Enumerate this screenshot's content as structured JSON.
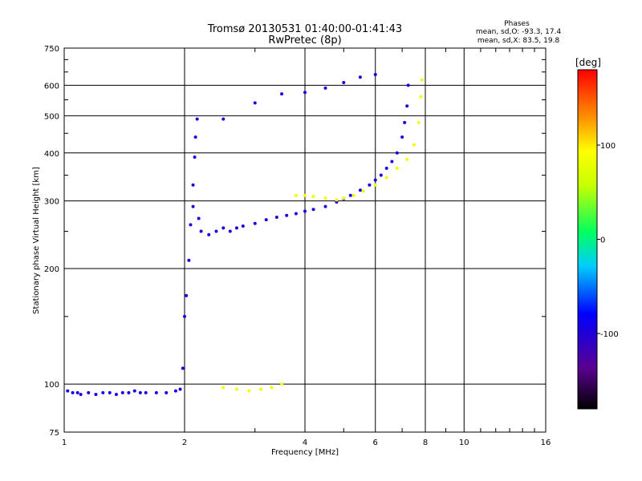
{
  "chart_data": {
    "type": "scatter",
    "title": "Tromsø 20130531 01:40:00-01:41:43",
    "subtitle": "RwPretec (8p)",
    "xlabel": "Frequency [MHz]",
    "ylabel": "Stationary phase Virtual Height [km]",
    "xscale": "log",
    "yscale": "log",
    "xlim": [
      1,
      16
    ],
    "ylim": [
      75,
      750
    ],
    "x_ticks": [
      1,
      2,
      4,
      6,
      8,
      10,
      16
    ],
    "y_ticks": [
      75,
      100,
      200,
      300,
      400,
      500,
      600,
      750
    ],
    "grid": true,
    "stats": {
      "heading": "Phases",
      "o_line": "mean, sd,O: -93.3, 17.4",
      "x_line": "mean, sd,X:  83.5, 19.8"
    },
    "colorbar": {
      "label": "[deg]",
      "range": [
        -180,
        180
      ],
      "ticks": [
        100,
        0,
        -100
      ],
      "colormap": "rainbow (black-purple-blue-cyan-green-yellow-orange-red)"
    },
    "series": [
      {
        "mode": "O",
        "phase": -95,
        "points": [
          [
            1.02,
            96
          ],
          [
            1.05,
            95
          ],
          [
            1.08,
            95
          ],
          [
            1.1,
            94
          ],
          [
            1.15,
            95
          ],
          [
            1.2,
            94
          ],
          [
            1.25,
            95
          ],
          [
            1.3,
            95
          ],
          [
            1.35,
            94
          ],
          [
            1.4,
            95
          ],
          [
            1.45,
            95
          ],
          [
            1.5,
            96
          ],
          [
            1.55,
            95
          ],
          [
            1.6,
            95
          ],
          [
            1.7,
            95
          ],
          [
            1.8,
            95
          ],
          [
            1.9,
            96
          ],
          [
            1.95,
            97
          ],
          [
            1.98,
            110
          ],
          [
            2.0,
            150
          ],
          [
            2.02,
            170
          ],
          [
            2.05,
            210
          ],
          [
            2.07,
            260
          ],
          [
            2.1,
            290
          ],
          [
            2.1,
            330
          ],
          [
            2.12,
            390
          ],
          [
            2.13,
            440
          ],
          [
            2.15,
            490
          ],
          [
            2.17,
            270
          ],
          [
            2.2,
            250
          ],
          [
            2.3,
            245
          ],
          [
            2.4,
            250
          ],
          [
            2.5,
            255
          ],
          [
            2.6,
            250
          ],
          [
            2.7,
            255
          ],
          [
            2.8,
            258
          ],
          [
            3.0,
            262
          ],
          [
            3.2,
            268
          ],
          [
            3.4,
            272
          ],
          [
            3.6,
            275
          ],
          [
            3.8,
            278
          ],
          [
            4.0,
            282
          ],
          [
            4.2,
            285
          ],
          [
            4.5,
            290
          ],
          [
            4.8,
            298
          ],
          [
            5.0,
            304
          ],
          [
            5.2,
            310
          ],
          [
            5.5,
            320
          ],
          [
            5.8,
            330
          ],
          [
            6.0,
            340
          ],
          [
            6.2,
            350
          ],
          [
            6.4,
            365
          ],
          [
            6.6,
            380
          ],
          [
            6.8,
            400
          ],
          [
            7.0,
            440
          ],
          [
            7.1,
            480
          ],
          [
            7.2,
            530
          ],
          [
            7.25,
            600
          ],
          [
            2.5,
            490
          ],
          [
            3.0,
            540
          ],
          [
            3.5,
            570
          ],
          [
            4.0,
            575
          ],
          [
            4.5,
            590
          ],
          [
            5.0,
            610
          ],
          [
            5.5,
            630
          ],
          [
            6.0,
            640
          ]
        ]
      },
      {
        "mode": "X",
        "phase": 85,
        "points": [
          [
            2.5,
            98
          ],
          [
            2.7,
            97
          ],
          [
            2.9,
            96
          ],
          [
            3.1,
            97
          ],
          [
            3.3,
            98
          ],
          [
            3.5,
            100
          ],
          [
            3.8,
            310
          ],
          [
            4.0,
            310
          ],
          [
            4.2,
            308
          ],
          [
            4.5,
            305
          ],
          [
            4.8,
            302
          ],
          [
            5.0,
            305
          ],
          [
            5.3,
            310
          ],
          [
            5.6,
            318
          ],
          [
            6.0,
            330
          ],
          [
            6.4,
            345
          ],
          [
            6.8,
            365
          ],
          [
            7.2,
            385
          ],
          [
            7.5,
            420
          ],
          [
            7.7,
            480
          ],
          [
            7.8,
            560
          ],
          [
            7.85,
            620
          ]
        ]
      }
    ]
  }
}
